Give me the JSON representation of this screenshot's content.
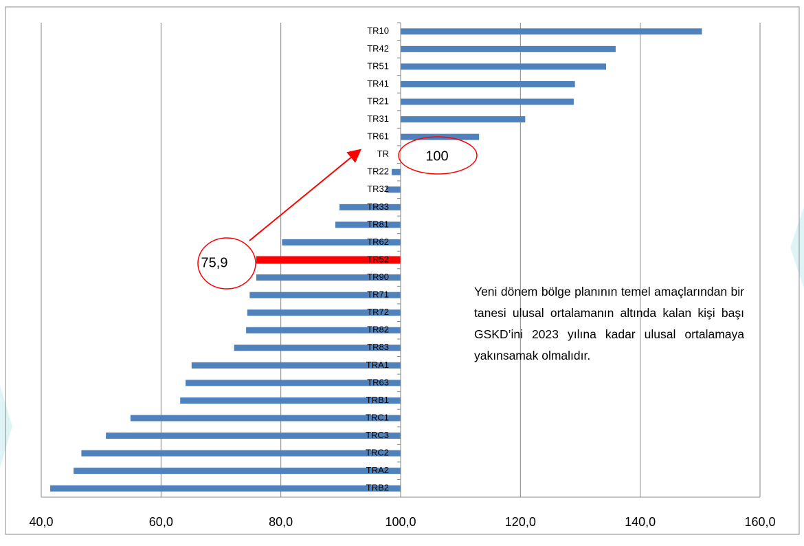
{
  "chart_data": {
    "type": "bar",
    "orientation": "horizontal",
    "baseline": 100,
    "categories": [
      "TR10",
      "TR42",
      "TR51",
      "TR41",
      "TR21",
      "TR31",
      "TR61",
      "TR",
      "TR22",
      "TR32",
      "TR33",
      "TR81",
      "TR62",
      "TR52",
      "TR90",
      "TR71",
      "TR72",
      "TR82",
      "TR83",
      "TRA1",
      "TR63",
      "TRB1",
      "TRC1",
      "TRC3",
      "TRC2",
      "TRA2",
      "TRB2"
    ],
    "values": [
      150.3,
      135.9,
      134.3,
      129.1,
      128.9,
      120.8,
      113.1,
      100,
      98.5,
      97.6,
      89.8,
      89.1,
      80.2,
      75.9,
      75.9,
      74.8,
      74.4,
      74.2,
      72.2,
      65.1,
      64.1,
      63.2,
      54.9,
      50.8,
      46.7,
      45.4,
      41.5
    ],
    "color": "#4f81bd",
    "highlight_category": "TR52",
    "highlight_color": "#ff0000",
    "xlim": [
      40,
      160
    ],
    "xticks": [
      {
        "value": 40,
        "label": "40,0"
      },
      {
        "value": 60,
        "label": "60,0"
      },
      {
        "value": 80,
        "label": "80,0"
      },
      {
        "value": 100,
        "label": "100,0"
      },
      {
        "value": 120,
        "label": "120,0"
      },
      {
        "value": 140,
        "label": "140,0"
      },
      {
        "value": 160,
        "label": "160,0"
      }
    ],
    "grid": true,
    "annotations": [
      {
        "text": "100",
        "category": "TR"
      },
      {
        "text": "75,9",
        "category": "TR52"
      }
    ],
    "note": "Yeni dönem bölge planının temel amaçlarından bir tanesi ulusal ortalamanın altında kalan kişi başı GSKD’ini 2023 yılına kadar ulusal ortalamaya yakınsamak olmalıdır."
  }
}
